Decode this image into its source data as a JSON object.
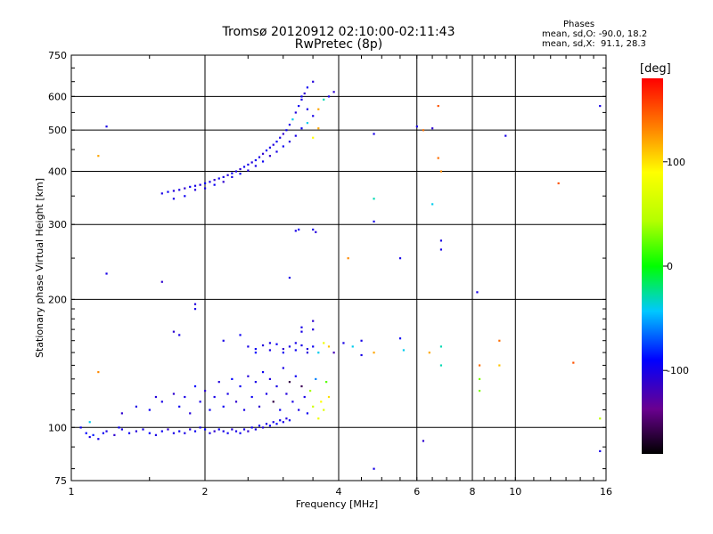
{
  "figure": {
    "title_line1": "Tromsø 20120912 02:10:00-02:11:43",
    "title_line2": "RwPretec (8p)",
    "stats_heading": "Phases",
    "stats_o": "mean, sd,O: -90.0, 18.2",
    "stats_x": "mean, sd,X:  91.1, 28.3"
  },
  "colorbar": {
    "label": "[deg]",
    "ticks": [
      "100",
      "0",
      "-100"
    ],
    "tick_values": [
      100,
      0,
      -100
    ],
    "range": [
      -180,
      180
    ]
  },
  "chart_data": {
    "type": "scatter",
    "title": "Tromsø 20120912 02:10:00-02:11:43",
    "subtitle": "RwPretec (8p)",
    "xlabel": "Frequency [MHz]",
    "ylabel": "Stationary phase Virtual Height [km]",
    "x_scale": "log",
    "y_scale": "log",
    "xlim": [
      1,
      16
    ],
    "ylim": [
      75,
      750
    ],
    "x_ticks": [
      1,
      2,
      4,
      6,
      8,
      10,
      16
    ],
    "y_ticks": [
      75,
      100,
      200,
      300,
      400,
      500,
      600,
      750
    ],
    "grid": true,
    "color_scale": "phase in degrees, -180 to 180",
    "points": [
      [
        1.05,
        100,
        -95
      ],
      [
        1.08,
        97,
        -90
      ],
      [
        1.1,
        95,
        -100
      ],
      [
        1.12,
        96,
        -85
      ],
      [
        1.15,
        94,
        -100
      ],
      [
        1.18,
        97,
        -95
      ],
      [
        1.2,
        98,
        -100
      ],
      [
        1.25,
        96,
        -110
      ],
      [
        1.28,
        100,
        -95
      ],
      [
        1.3,
        99,
        -100
      ],
      [
        1.35,
        97,
        -95
      ],
      [
        1.4,
        98,
        -105
      ],
      [
        1.45,
        99,
        -100
      ],
      [
        1.5,
        97,
        -90
      ],
      [
        1.55,
        96,
        -100
      ],
      [
        1.6,
        98,
        -95
      ],
      [
        1.65,
        99,
        -110
      ],
      [
        1.7,
        97,
        -100
      ],
      [
        1.75,
        98,
        -95
      ],
      [
        1.8,
        97,
        -100
      ],
      [
        1.85,
        99,
        -105
      ],
      [
        1.9,
        98,
        -95
      ],
      [
        1.95,
        100,
        -100
      ],
      [
        2.0,
        99,
        -90
      ],
      [
        2.05,
        97,
        -100
      ],
      [
        2.1,
        98,
        -110
      ],
      [
        2.15,
        99,
        -95
      ],
      [
        2.2,
        98,
        -100
      ],
      [
        2.25,
        97,
        -95
      ],
      [
        2.3,
        99,
        -105
      ],
      [
        2.35,
        98,
        -100
      ],
      [
        2.4,
        97,
        -95
      ],
      [
        2.45,
        99,
        -100
      ],
      [
        2.5,
        98,
        -110
      ],
      [
        2.55,
        100,
        -95
      ],
      [
        2.6,
        99,
        -100
      ],
      [
        2.65,
        101,
        -95
      ],
      [
        2.7,
        100,
        -105
      ],
      [
        2.75,
        102,
        -100
      ],
      [
        2.8,
        101,
        -95
      ],
      [
        2.85,
        103,
        -100
      ],
      [
        2.9,
        102,
        -90
      ],
      [
        2.95,
        104,
        -95
      ],
      [
        3.0,
        103,
        -100
      ],
      [
        3.05,
        105,
        -105
      ],
      [
        3.1,
        104,
        -95
      ],
      [
        1.3,
        108,
        -110
      ],
      [
        1.4,
        112,
        -100
      ],
      [
        1.5,
        110,
        -95
      ],
      [
        1.55,
        118,
        -105
      ],
      [
        1.6,
        115,
        -100
      ],
      [
        1.7,
        120,
        -110
      ],
      [
        1.75,
        112,
        -95
      ],
      [
        1.8,
        118,
        -100
      ],
      [
        1.85,
        108,
        -105
      ],
      [
        1.9,
        125,
        -90
      ],
      [
        1.95,
        115,
        -100
      ],
      [
        2.0,
        122,
        -110
      ],
      [
        2.05,
        110,
        -95
      ],
      [
        2.1,
        118,
        -100
      ],
      [
        2.15,
        128,
        -105
      ],
      [
        2.2,
        112,
        -95
      ],
      [
        2.25,
        120,
        -100
      ],
      [
        2.3,
        130,
        -90
      ],
      [
        2.35,
        115,
        -110
      ],
      [
        2.4,
        125,
        -95
      ],
      [
        2.45,
        110,
        -100
      ],
      [
        2.5,
        132,
        -105
      ],
      [
        2.55,
        118,
        -95
      ],
      [
        2.6,
        128,
        -100
      ],
      [
        2.65,
        112,
        -110
      ],
      [
        2.7,
        135,
        -95
      ],
      [
        2.75,
        120,
        -100
      ],
      [
        2.8,
        130,
        -105
      ],
      [
        2.85,
        115,
        -160
      ],
      [
        2.9,
        125,
        -100
      ],
      [
        2.95,
        110,
        -95
      ],
      [
        3.0,
        138,
        -100
      ],
      [
        3.05,
        120,
        -105
      ],
      [
        3.1,
        128,
        -160
      ],
      [
        3.15,
        115,
        -100
      ],
      [
        3.2,
        132,
        -95
      ],
      [
        3.25,
        110,
        -100
      ],
      [
        3.3,
        125,
        -155
      ],
      [
        3.35,
        118,
        -100
      ],
      [
        3.4,
        108,
        -95
      ],
      [
        3.45,
        122,
        40
      ],
      [
        3.5,
        112,
        60
      ],
      [
        3.55,
        130,
        -60
      ],
      [
        3.6,
        105,
        80
      ],
      [
        3.65,
        115,
        90
      ],
      [
        3.7,
        110,
        70
      ],
      [
        3.75,
        128,
        20
      ],
      [
        3.8,
        118,
        100
      ],
      [
        2.5,
        155,
        -100
      ],
      [
        2.6,
        153,
        -95
      ],
      [
        2.7,
        156,
        -105
      ],
      [
        2.8,
        152,
        -100
      ],
      [
        2.9,
        157,
        -95
      ],
      [
        3.0,
        153,
        -110
      ],
      [
        3.1,
        155,
        -100
      ],
      [
        3.2,
        152,
        -95
      ],
      [
        3.3,
        156,
        -100
      ],
      [
        3.4,
        153,
        -105
      ],
      [
        3.5,
        155,
        -95
      ],
      [
        2.6,
        150,
        -90
      ],
      [
        2.8,
        158,
        -100
      ],
      [
        3.0,
        150,
        -95
      ],
      [
        3.2,
        158,
        -100
      ],
      [
        3.4,
        150,
        -105
      ],
      [
        3.6,
        150,
        -40
      ],
      [
        3.7,
        158,
        80
      ],
      [
        3.8,
        155,
        110
      ],
      [
        3.9,
        150,
        -120
      ],
      [
        4.1,
        158,
        -100
      ],
      [
        4.3,
        155,
        -40
      ],
      [
        4.5,
        148,
        -100
      ],
      [
        4.8,
        150,
        120
      ],
      [
        2.2,
        160,
        -100
      ],
      [
        2.4,
        165,
        -95
      ],
      [
        3.3,
        168,
        -100
      ],
      [
        3.5,
        170,
        -105
      ],
      [
        3.5,
        178,
        -110
      ],
      [
        3.3,
        172,
        -100
      ],
      [
        4.5,
        160,
        -100
      ],
      [
        5.5,
        162,
        -95
      ],
      [
        5.6,
        152,
        -40
      ],
      [
        6.8,
        155,
        -30
      ],
      [
        6.8,
        140,
        -30
      ],
      [
        6.4,
        150,
        120
      ],
      [
        1.7,
        168,
        -110
      ],
      [
        1.75,
        165,
        -100
      ],
      [
        1.9,
        195,
        -105
      ],
      [
        1.9,
        190,
        -100
      ],
      [
        1.6,
        220,
        -110
      ],
      [
        1.2,
        230,
        -100
      ],
      [
        1.15,
        135,
        130
      ],
      [
        1.1,
        103,
        -40
      ],
      [
        1.6,
        355,
        -100
      ],
      [
        1.65,
        358,
        -95
      ],
      [
        1.7,
        360,
        -105
      ],
      [
        1.75,
        362,
        -100
      ],
      [
        1.8,
        365,
        -110
      ],
      [
        1.85,
        368,
        -95
      ],
      [
        1.9,
        370,
        -100
      ],
      [
        1.95,
        372,
        -105
      ],
      [
        2.0,
        375,
        -95
      ],
      [
        2.05,
        378,
        -100
      ],
      [
        2.1,
        382,
        -110
      ],
      [
        2.15,
        385,
        -95
      ],
      [
        2.2,
        388,
        -100
      ],
      [
        2.25,
        392,
        -105
      ],
      [
        2.3,
        396,
        -95
      ],
      [
        2.35,
        400,
        -100
      ],
      [
        2.4,
        405,
        -110
      ],
      [
        2.45,
        410,
        -95
      ],
      [
        2.5,
        415,
        -100
      ],
      [
        2.55,
        420,
        -105
      ],
      [
        2.6,
        425,
        -95
      ],
      [
        2.65,
        432,
        -100
      ],
      [
        2.7,
        440,
        -110
      ],
      [
        2.75,
        448,
        -95
      ],
      [
        2.8,
        455,
        -100
      ],
      [
        2.85,
        462,
        -105
      ],
      [
        2.9,
        470,
        -95
      ],
      [
        2.95,
        480,
        -100
      ],
      [
        3.0,
        490,
        -110
      ],
      [
        3.05,
        500,
        -95
      ],
      [
        3.1,
        515,
        -100
      ],
      [
        3.15,
        530,
        -40
      ],
      [
        3.2,
        550,
        -105
      ],
      [
        3.25,
        570,
        -95
      ],
      [
        3.3,
        590,
        -100
      ],
      [
        3.35,
        610,
        -110
      ],
      [
        3.4,
        630,
        -95
      ],
      [
        1.7,
        345,
        -100
      ],
      [
        1.8,
        350,
        -95
      ],
      [
        1.9,
        362,
        -105
      ],
      [
        2.0,
        365,
        -100
      ],
      [
        2.1,
        372,
        -95
      ],
      [
        2.2,
        378,
        -110
      ],
      [
        2.3,
        388,
        -100
      ],
      [
        2.4,
        395,
        -95
      ],
      [
        2.5,
        402,
        -105
      ],
      [
        2.6,
        412,
        -100
      ],
      [
        2.7,
        422,
        -95
      ],
      [
        2.8,
        435,
        -110
      ],
      [
        2.9,
        445,
        -100
      ],
      [
        3.0,
        458,
        -95
      ],
      [
        3.1,
        470,
        -105
      ],
      [
        3.2,
        485,
        -100
      ],
      [
        3.3,
        505,
        -95
      ],
      [
        3.4,
        520,
        -40
      ],
      [
        3.5,
        540,
        -100
      ],
      [
        3.6,
        560,
        120
      ],
      [
        3.7,
        590,
        -30
      ],
      [
        3.8,
        600,
        -100
      ],
      [
        3.9,
        615,
        -110
      ],
      [
        3.5,
        480,
        90
      ],
      [
        3.6,
        505,
        120
      ],
      [
        3.3,
        600,
        -95
      ],
      [
        3.4,
        560,
        -100
      ],
      [
        3.5,
        650,
        -105
      ],
      [
        3.2,
        290,
        -100
      ],
      [
        3.25,
        292,
        -95
      ],
      [
        3.5,
        292,
        -100
      ],
      [
        3.55,
        288,
        -105
      ],
      [
        3.1,
        225,
        -100
      ],
      [
        1.2,
        510,
        -100
      ],
      [
        1.15,
        435,
        120
      ],
      [
        4.2,
        250,
        130
      ],
      [
        4.8,
        490,
        -100
      ],
      [
        4.8,
        345,
        -30
      ],
      [
        4.8,
        305,
        -100
      ],
      [
        5.5,
        250,
        -100
      ],
      [
        6.0,
        510,
        -100
      ],
      [
        6.5,
        505,
        -110
      ],
      [
        6.2,
        500,
        140
      ],
      [
        6.7,
        430,
        140
      ],
      [
        6.8,
        400,
        130
      ],
      [
        6.7,
        570,
        150
      ],
      [
        6.5,
        335,
        -40
      ],
      [
        6.8,
        275,
        -100
      ],
      [
        6.8,
        262,
        -100
      ],
      [
        8.2,
        208,
        -100
      ],
      [
        9.5,
        485,
        -100
      ],
      [
        12.5,
        375,
        150
      ],
      [
        8.3,
        140,
        140
      ],
      [
        8.3,
        130,
        30
      ],
      [
        8.3,
        122,
        30
      ],
      [
        9.2,
        140,
        110
      ],
      [
        9.2,
        160,
        140
      ],
      [
        13.5,
        142,
        150
      ],
      [
        15.5,
        105,
        50
      ],
      [
        15.5,
        88,
        -100
      ],
      [
        15.5,
        570,
        -100
      ],
      [
        4.8,
        80,
        -100
      ],
      [
        6.2,
        93,
        -110
      ]
    ]
  }
}
